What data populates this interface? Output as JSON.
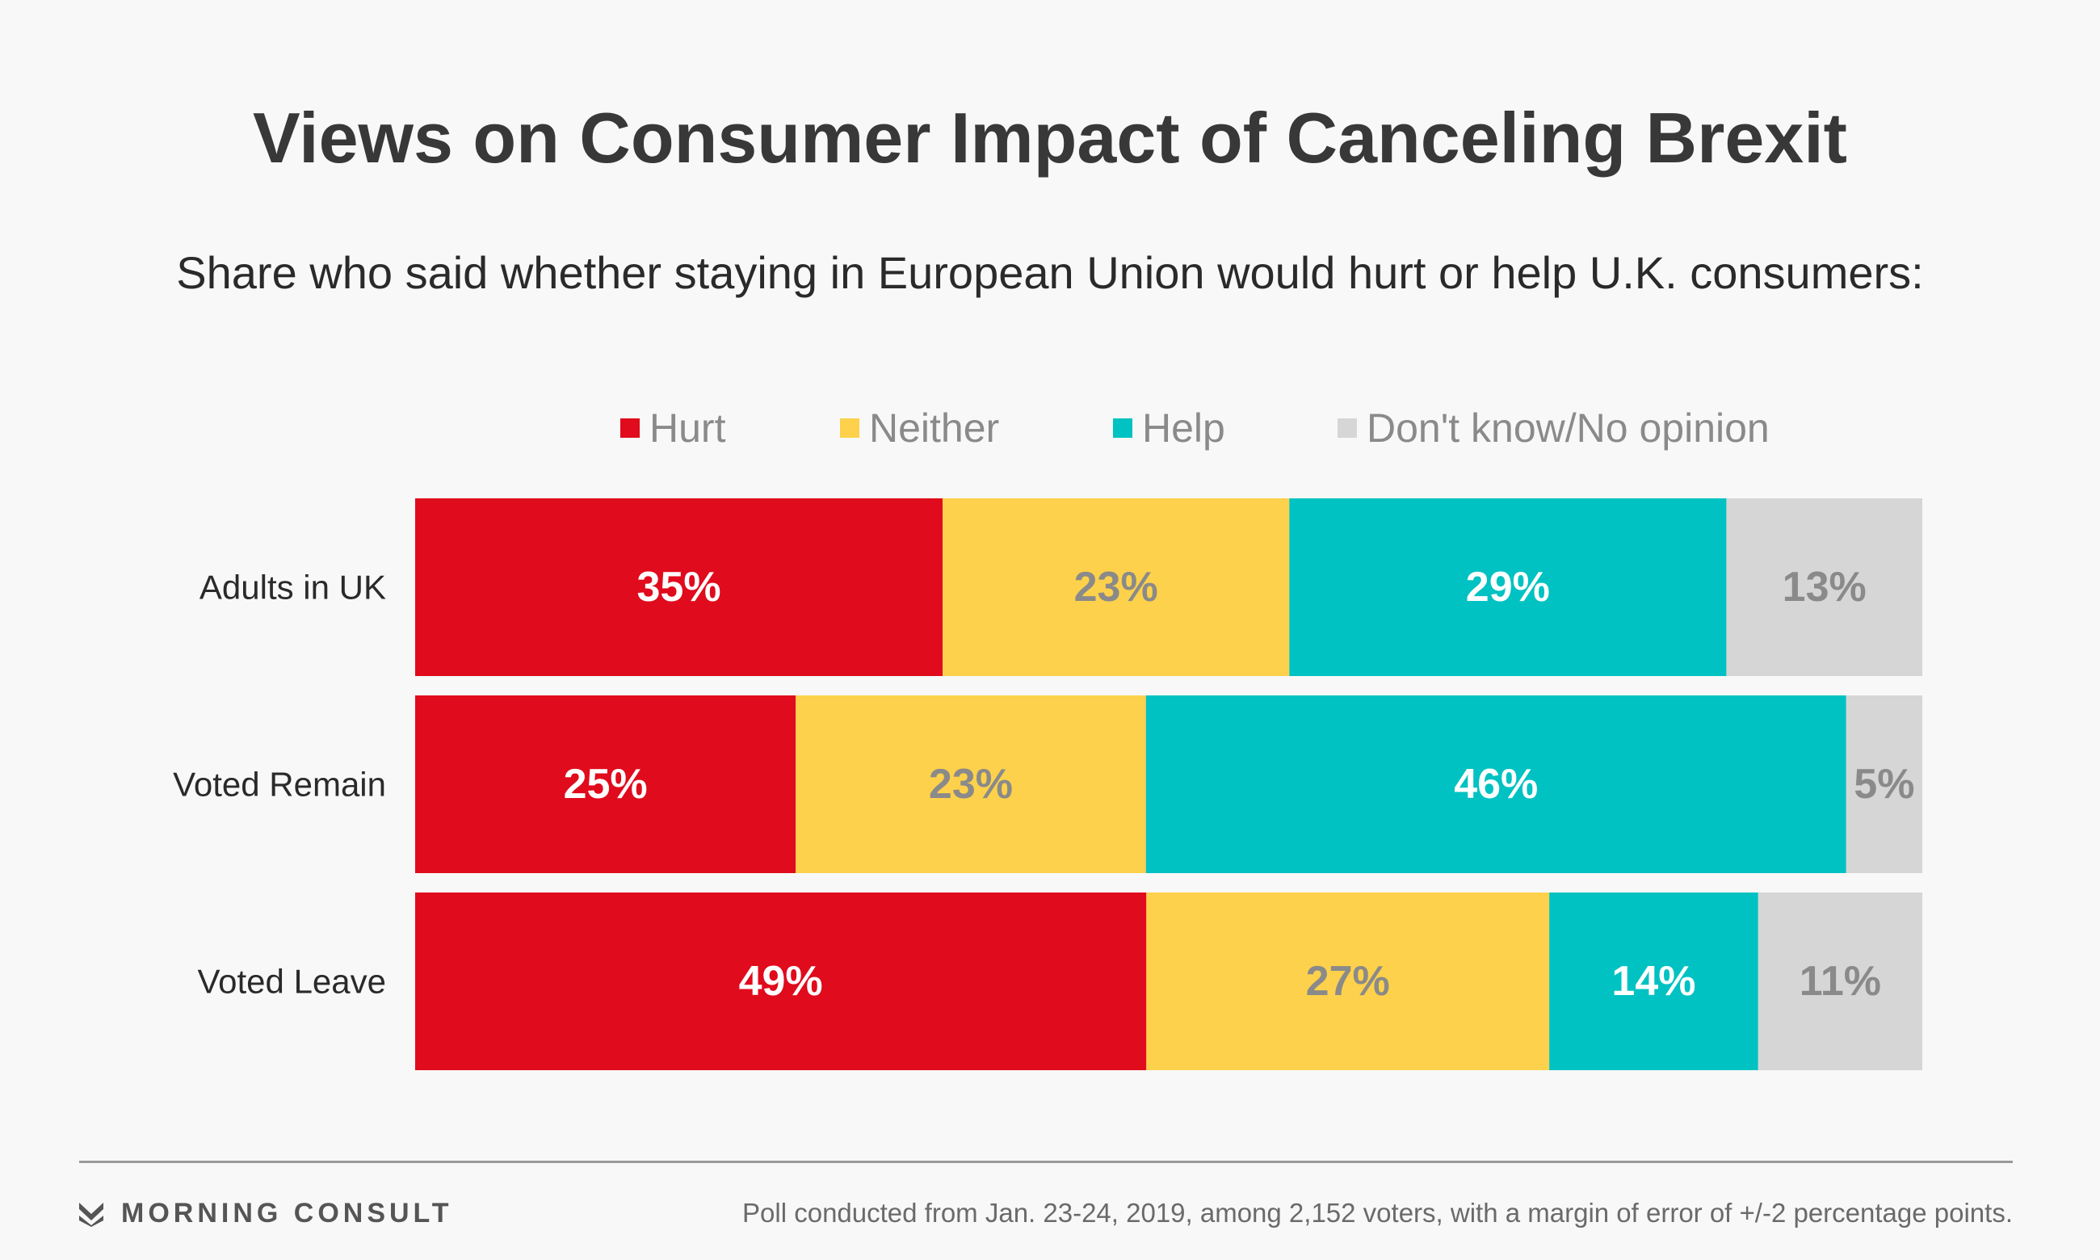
{
  "title": "Views on Consumer Impact of Canceling Brexit",
  "subtitle": "Share who said whether staying in European Union would hurt or help U.K. consumers:",
  "chart_data": {
    "type": "bar",
    "orientation": "horizontal",
    "stacked": true,
    "title": "Views on Consumer Impact of Canceling Brexit",
    "subtitle": "Share who said whether staying in European Union would hurt or help U.K. consumers:",
    "categories": [
      "Adults in UK",
      "Voted Remain",
      "Voted Leave"
    ],
    "legend_position": "top",
    "grid": false,
    "series": [
      {
        "name": "Hurt",
        "color": "#e00b1c",
        "label_color": "#ffffff",
        "values": [
          35,
          25,
          49
        ],
        "labels": [
          "35%",
          "25%",
          "49%"
        ]
      },
      {
        "name": "Neither",
        "color": "#fdd14b",
        "label_color": "#8a8a8a",
        "values": [
          23,
          23,
          27
        ],
        "labels": [
          "23%",
          "23%",
          "27%"
        ]
      },
      {
        "name": "Help",
        "color": "#00c2c2",
        "label_color": "#ffffff",
        "values": [
          29,
          46,
          14
        ],
        "labels": [
          "29%",
          "46%",
          "14%"
        ]
      },
      {
        "name": "Don't know/No opinion",
        "color": "#d6d6d6",
        "label_color": "#8a8a8a",
        "values": [
          13,
          5,
          11
        ],
        "labels": [
          "13%",
          "5%",
          "11%"
        ]
      }
    ]
  },
  "footer": {
    "brand": "MORNING CONSULT",
    "brand_icon": "morning-consult-logo-icon",
    "note": "Poll conducted from Jan. 23-24, 2019, among 2,152 voters, with a margin of error of +/-2 percentage points."
  }
}
